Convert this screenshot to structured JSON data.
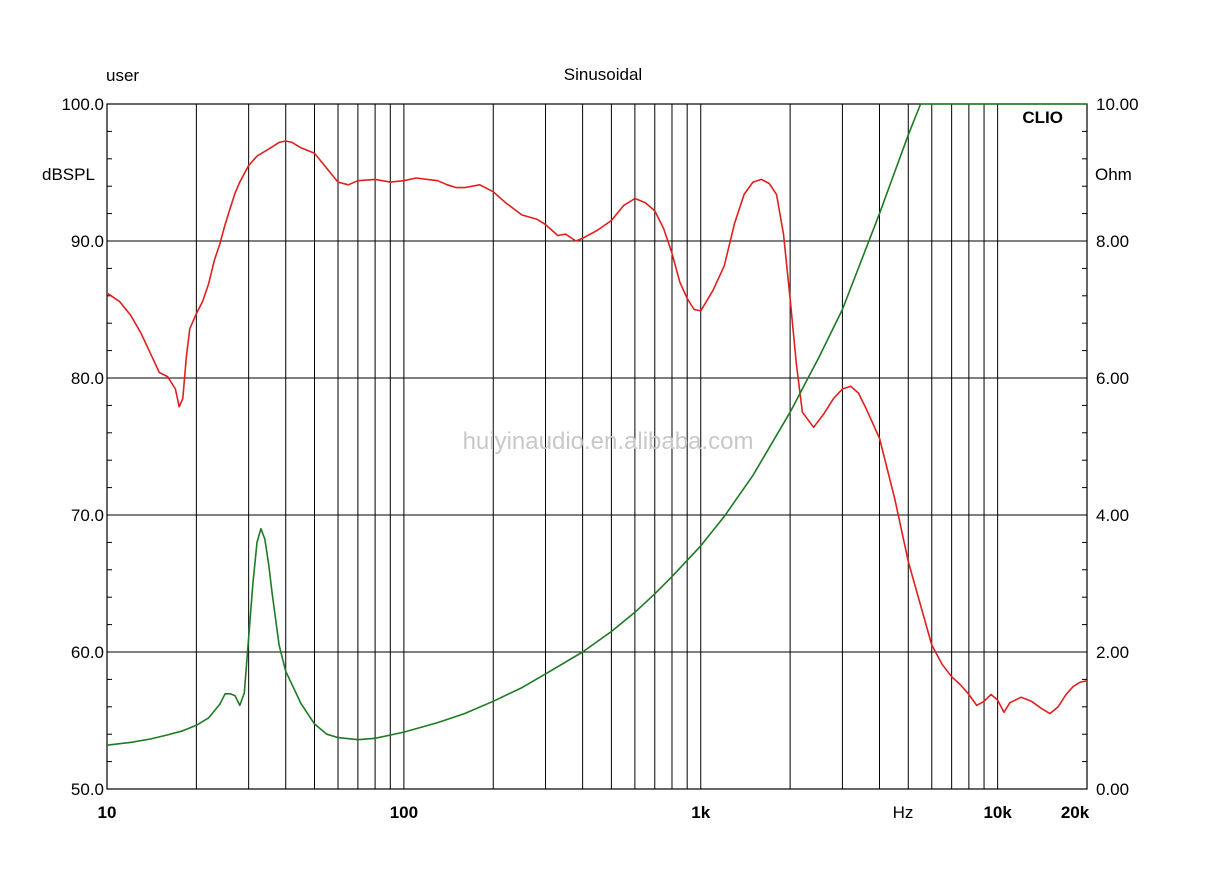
{
  "chart_data": {
    "type": "line",
    "top_left_label": "user",
    "title": "Sinusoidal",
    "brand": "CLIO",
    "watermark": "huiyinaudio.en.alibaba.com",
    "xscale": "log",
    "xlim": [
      10,
      20000
    ],
    "x_tick_labels": [
      {
        "value": 10,
        "label": "10"
      },
      {
        "value": 100,
        "label": "100"
      },
      {
        "value": 1000,
        "label": "1k"
      },
      {
        "value": 10000,
        "label": "10k"
      },
      {
        "value": 20000,
        "label": "20k"
      }
    ],
    "xlabel": "Hz",
    "grid": true,
    "y_left": {
      "label": "dBSPL",
      "lim": [
        50,
        100
      ],
      "ticks": [
        {
          "value": 100,
          "label": "100.0"
        },
        {
          "value": 90,
          "label": "90.0"
        },
        {
          "value": 80,
          "label": "80.0"
        },
        {
          "value": 70,
          "label": "70.0"
        },
        {
          "value": 60,
          "label": "60.0"
        },
        {
          "value": 50,
          "label": "50.0"
        }
      ]
    },
    "y_right": {
      "label": "Ohm",
      "lim": [
        0,
        10
      ],
      "ticks": [
        {
          "value": 10,
          "label": "10.00"
        },
        {
          "value": 8,
          "label": "8.00"
        },
        {
          "value": 6,
          "label": "6.00"
        },
        {
          "value": 4,
          "label": "4.00"
        },
        {
          "value": 2,
          "label": "2.00"
        },
        {
          "value": 0,
          "label": "0.00"
        }
      ]
    },
    "series": [
      {
        "axis": "left",
        "color": "#e0201e",
        "points": [
          [
            10,
            86.2
          ],
          [
            11,
            85.6
          ],
          [
            12,
            84.6
          ],
          [
            13,
            83.3
          ],
          [
            14,
            81.8
          ],
          [
            15,
            80.4
          ],
          [
            16,
            80.1
          ],
          [
            17,
            79.2
          ],
          [
            17.5,
            77.9
          ],
          [
            18,
            78.5
          ],
          [
            18.5,
            81.5
          ],
          [
            19,
            83.6
          ],
          [
            20,
            84.7
          ],
          [
            21,
            85.6
          ],
          [
            22,
            86.9
          ],
          [
            23,
            88.6
          ],
          [
            24,
            89.8
          ],
          [
            25,
            91.2
          ],
          [
            26,
            92.4
          ],
          [
            27,
            93.5
          ],
          [
            28,
            94.3
          ],
          [
            30,
            95.5
          ],
          [
            32,
            96.2
          ],
          [
            35,
            96.7
          ],
          [
            38,
            97.2
          ],
          [
            40,
            97.3
          ],
          [
            42,
            97.2
          ],
          [
            45,
            96.8
          ],
          [
            50,
            96.4
          ],
          [
            55,
            95.3
          ],
          [
            60,
            94.3
          ],
          [
            65,
            94.1
          ],
          [
            70,
            94.4
          ],
          [
            80,
            94.5
          ],
          [
            90,
            94.3
          ],
          [
            100,
            94.4
          ],
          [
            110,
            94.6
          ],
          [
            120,
            94.5
          ],
          [
            130,
            94.4
          ],
          [
            140,
            94.1
          ],
          [
            150,
            93.9
          ],
          [
            160,
            93.9
          ],
          [
            180,
            94.1
          ],
          [
            200,
            93.6
          ],
          [
            220,
            92.8
          ],
          [
            250,
            91.9
          ],
          [
            280,
            91.6
          ],
          [
            300,
            91.2
          ],
          [
            330,
            90.4
          ],
          [
            350,
            90.5
          ],
          [
            380,
            90.0
          ],
          [
            400,
            90.2
          ],
          [
            450,
            90.8
          ],
          [
            500,
            91.5
          ],
          [
            550,
            92.6
          ],
          [
            600,
            93.1
          ],
          [
            650,
            92.8
          ],
          [
            700,
            92.2
          ],
          [
            750,
            90.9
          ],
          [
            800,
            89.1
          ],
          [
            850,
            87.0
          ],
          [
            900,
            85.8
          ],
          [
            950,
            85.0
          ],
          [
            1000,
            84.9
          ],
          [
            1100,
            86.4
          ],
          [
            1200,
            88.2
          ],
          [
            1300,
            91.3
          ],
          [
            1400,
            93.4
          ],
          [
            1500,
            94.3
          ],
          [
            1600,
            94.5
          ],
          [
            1700,
            94.2
          ],
          [
            1800,
            93.4
          ],
          [
            1900,
            90.5
          ],
          [
            2000,
            85.8
          ],
          [
            2100,
            81.0
          ],
          [
            2200,
            77.5
          ],
          [
            2400,
            76.4
          ],
          [
            2600,
            77.4
          ],
          [
            2800,
            78.5
          ],
          [
            3000,
            79.2
          ],
          [
            3200,
            79.4
          ],
          [
            3400,
            78.9
          ],
          [
            3600,
            77.8
          ],
          [
            4000,
            75.6
          ],
          [
            4500,
            71.2
          ],
          [
            5000,
            66.6
          ],
          [
            5500,
            63.4
          ],
          [
            6000,
            60.5
          ],
          [
            6500,
            59.1
          ],
          [
            7000,
            58.2
          ],
          [
            7500,
            57.6
          ],
          [
            8000,
            56.9
          ],
          [
            8500,
            56.1
          ],
          [
            9000,
            56.4
          ],
          [
            9500,
            56.9
          ],
          [
            10000,
            56.5
          ],
          [
            10500,
            55.6
          ],
          [
            11000,
            56.3
          ],
          [
            12000,
            56.7
          ],
          [
            13000,
            56.4
          ],
          [
            14000,
            55.9
          ],
          [
            15000,
            55.5
          ],
          [
            16000,
            56.0
          ],
          [
            17000,
            56.9
          ],
          [
            18000,
            57.5
          ],
          [
            19000,
            57.8
          ],
          [
            20000,
            57.9
          ]
        ]
      },
      {
        "axis": "right",
        "color": "#1e7a24",
        "points": [
          [
            10,
            0.64
          ],
          [
            12,
            0.68
          ],
          [
            14,
            0.73
          ],
          [
            16,
            0.79
          ],
          [
            18,
            0.85
          ],
          [
            20,
            0.93
          ],
          [
            22,
            1.04
          ],
          [
            24,
            1.24
          ],
          [
            25,
            1.39
          ],
          [
            26,
            1.39
          ],
          [
            27,
            1.36
          ],
          [
            28,
            1.22
          ],
          [
            29,
            1.4
          ],
          [
            30,
            2.2
          ],
          [
            31,
            3.0
          ],
          [
            32,
            3.6
          ],
          [
            33,
            3.8
          ],
          [
            34,
            3.65
          ],
          [
            35,
            3.3
          ],
          [
            36,
            2.85
          ],
          [
            38,
            2.1
          ],
          [
            40,
            1.72
          ],
          [
            45,
            1.25
          ],
          [
            50,
            0.95
          ],
          [
            55,
            0.8
          ],
          [
            60,
            0.75
          ],
          [
            70,
            0.72
          ],
          [
            80,
            0.74
          ],
          [
            100,
            0.83
          ],
          [
            130,
            0.97
          ],
          [
            160,
            1.1
          ],
          [
            200,
            1.28
          ],
          [
            250,
            1.48
          ],
          [
            300,
            1.68
          ],
          [
            400,
            2.0
          ],
          [
            500,
            2.3
          ],
          [
            600,
            2.58
          ],
          [
            700,
            2.85
          ],
          [
            800,
            3.1
          ],
          [
            1000,
            3.55
          ],
          [
            1200,
            3.98
          ],
          [
            1500,
            4.58
          ],
          [
            2000,
            5.5
          ],
          [
            2500,
            6.3
          ],
          [
            3000,
            7.0
          ],
          [
            4000,
            8.4
          ],
          [
            5000,
            9.55
          ],
          [
            5500,
            10.0
          ],
          [
            20000,
            10.0
          ]
        ]
      }
    ]
  }
}
